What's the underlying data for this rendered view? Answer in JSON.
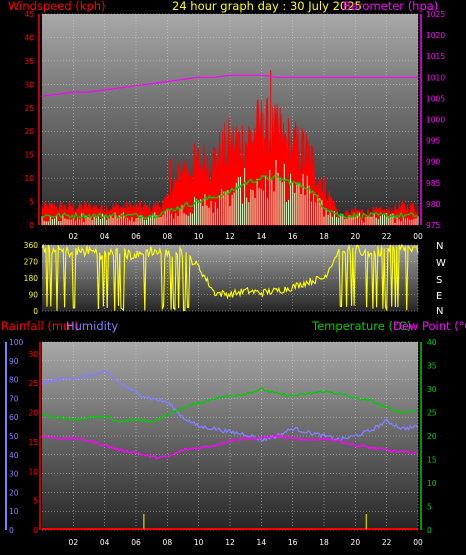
{
  "header": {
    "left_label": "Windspeed (kph)",
    "title": "24 hour graph day : 30 July 2025",
    "right_label": "Barometer (hpa)"
  },
  "bottom_labels": {
    "rainfall": "Rainfall (mm)",
    "humidity": "Humidity",
    "temperature": "Temperature (°C)",
    "dewpoint": "Dew Point (°C)"
  },
  "direction_labels": [
    "N",
    "W",
    "S",
    "E",
    "N"
  ],
  "colors": {
    "windspeed": "#ff0000",
    "gust": "#ff0000",
    "avg": "#00cc00",
    "windrun": "#ccffcc",
    "barometer": "#ff00ff",
    "direction": "#ffff00",
    "humidity": "#8080ff",
    "temperature": "#00cc00",
    "dewpoint": "#ff00ff",
    "rainfall": "#ff0000",
    "rain_rate": "#cccc00"
  },
  "chart_data": [
    {
      "type": "line",
      "x_ticks": [
        "02",
        "04",
        "06",
        "08",
        "10",
        "12",
        "14",
        "16",
        "18",
        "20",
        "22",
        "00"
      ],
      "y_left_ticks": [
        "0",
        "5",
        "10",
        "15",
        "20",
        "25",
        "30",
        "35",
        "40",
        "45"
      ],
      "y_right_ticks": [
        "975",
        "980",
        "985",
        "990",
        "995",
        "1000",
        "1005",
        "1010",
        "1015",
        "1020",
        "1025"
      ],
      "ylim_left": [
        0,
        45
      ],
      "ylim_right": [
        975,
        1025
      ],
      "series": [
        {
          "name": "Barometer (hpa)",
          "axis": "right",
          "x": [
            0,
            1,
            2,
            3,
            4,
            5,
            6,
            7,
            8,
            9,
            10,
            11,
            12,
            13,
            14,
            15,
            16,
            17,
            18,
            19,
            20,
            21,
            22,
            23,
            24
          ],
          "values": [
            1005.5,
            1006,
            1006.5,
            1006.5,
            1007,
            1007.5,
            1008,
            1008.5,
            1009,
            1009.5,
            1010,
            1010,
            1010.5,
            1010.5,
            1010.5,
            1010,
            1010,
            1010,
            1010,
            1010,
            1010,
            1010,
            1010,
            1010,
            1010
          ]
        },
        {
          "name": "Windspeed (kph)",
          "axis": "left",
          "x": [
            0,
            1,
            2,
            3,
            4,
            5,
            6,
            7,
            8,
            9,
            10,
            11,
            12,
            13,
            14,
            15,
            16,
            17,
            18,
            19,
            20,
            21,
            22,
            23,
            24
          ],
          "values": [
            4,
            4,
            4,
            4,
            4,
            4,
            4,
            4,
            5,
            13,
            14,
            15,
            18,
            19,
            22,
            20,
            18,
            16,
            9,
            2,
            3,
            3,
            3,
            4,
            4
          ]
        },
        {
          "name": "Average (kph)",
          "axis": "left",
          "x": [
            0,
            1,
            2,
            3,
            4,
            5,
            6,
            7,
            8,
            9,
            10,
            11,
            12,
            13,
            14,
            15,
            16,
            17,
            18,
            19,
            20,
            21,
            22,
            23,
            24
          ],
          "values": [
            1,
            1,
            1,
            1,
            1,
            1,
            1,
            1,
            2,
            3,
            4,
            5,
            6,
            8,
            9,
            9,
            8,
            7,
            3,
            1,
            1,
            1,
            1,
            1,
            1
          ]
        }
      ]
    },
    {
      "type": "line",
      "x_ticks": [],
      "y_left_ticks": [
        "0",
        "90",
        "180",
        "270",
        "360"
      ],
      "ylim": [
        0,
        360
      ],
      "series": [
        {
          "name": "Wind direction",
          "x": [
            0,
            1,
            2,
            3,
            4,
            5,
            6,
            7,
            8,
            9,
            10,
            11,
            12,
            13,
            14,
            15,
            16,
            17,
            18,
            19,
            20,
            21,
            22,
            23,
            24
          ],
          "values": [
            340,
            330,
            320,
            330,
            310,
            320,
            300,
            330,
            310,
            320,
            240,
            100,
            90,
            110,
            100,
            110,
            130,
            160,
            180,
            340,
            330,
            320,
            330,
            340,
            330
          ]
        }
      ]
    },
    {
      "type": "line",
      "x_ticks": [
        "02",
        "04",
        "06",
        "08",
        "10",
        "12",
        "14",
        "16",
        "18",
        "20",
        "22",
        "00"
      ],
      "y_humidity_ticks": [
        "0",
        "10",
        "20",
        "30",
        "40",
        "50",
        "60",
        "70",
        "80",
        "90",
        "100"
      ],
      "y_rain_ticks": [
        "0",
        "5",
        "10",
        "15",
        "20",
        "25",
        "30"
      ],
      "y_temp_ticks": [
        "0",
        "5",
        "10",
        "15",
        "20",
        "25",
        "30",
        "35",
        "40"
      ],
      "ylim_humidity": [
        0,
        100
      ],
      "ylim_rain": [
        0,
        30
      ],
      "ylim_temp": [
        0,
        40
      ],
      "series": [
        {
          "name": "Humidity",
          "axis": "humidity",
          "x": [
            0,
            1,
            2,
            3,
            4,
            5,
            6,
            7,
            8,
            9,
            10,
            11,
            12,
            13,
            14,
            15,
            16,
            17,
            18,
            19,
            20,
            21,
            22,
            23,
            24
          ],
          "values": [
            78,
            80,
            81,
            82,
            84,
            78,
            73,
            70,
            68,
            60,
            55,
            54,
            52,
            51,
            48,
            50,
            54,
            52,
            50,
            48,
            50,
            53,
            58,
            54,
            55
          ]
        },
        {
          "name": "Temperature (°C)",
          "axis": "temp",
          "x": [
            0,
            1,
            2,
            3,
            4,
            5,
            6,
            7,
            8,
            9,
            10,
            11,
            12,
            13,
            14,
            15,
            16,
            17,
            18,
            19,
            20,
            21,
            22,
            23,
            24
          ],
          "values": [
            24.5,
            24,
            23.5,
            24,
            24,
            23,
            23.5,
            23,
            24.5,
            26,
            27,
            28,
            28.5,
            29,
            30,
            29,
            28.5,
            29,
            29.5,
            29,
            28,
            27.5,
            26,
            25,
            25.5
          ]
        },
        {
          "name": "Dew Point (°C)",
          "axis": "temp",
          "x": [
            0,
            1,
            2,
            3,
            4,
            5,
            6,
            7,
            8,
            9,
            10,
            11,
            12,
            13,
            14,
            15,
            16,
            17,
            18,
            19,
            20,
            21,
            22,
            23,
            24
          ],
          "values": [
            20,
            19.5,
            19.5,
            19,
            18,
            17,
            16.5,
            15.5,
            15.5,
            17,
            17.5,
            18,
            19,
            19.5,
            19.5,
            20,
            19.5,
            19,
            19.5,
            19,
            18,
            17.5,
            17,
            16.5,
            16.5
          ]
        },
        {
          "name": "Rainfall (mm)",
          "axis": "rain",
          "x": [
            0,
            24
          ],
          "values": [
            0,
            0
          ]
        }
      ]
    }
  ]
}
